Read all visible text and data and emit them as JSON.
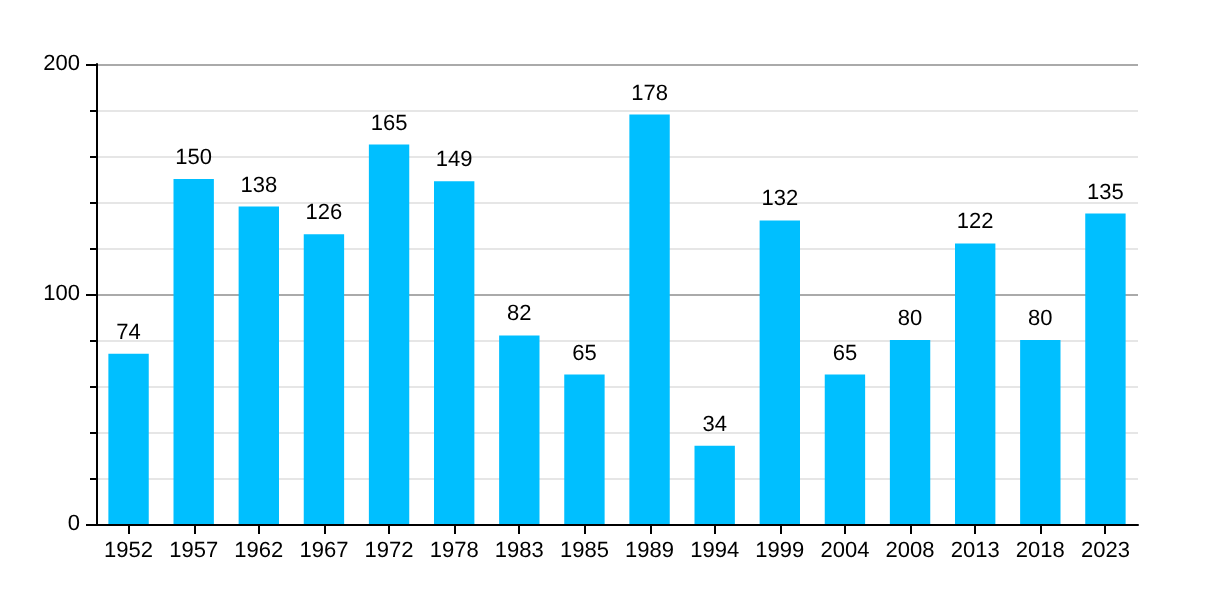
{
  "chart_data": {
    "type": "bar",
    "categories": [
      "1952",
      "1957",
      "1962",
      "1967",
      "1972",
      "1978",
      "1983",
      "1985",
      "1989",
      "1994",
      "1999",
      "2004",
      "2008",
      "2013",
      "2018",
      "2023"
    ],
    "values": [
      74,
      150,
      138,
      126,
      165,
      149,
      82,
      65,
      178,
      34,
      132,
      65,
      80,
      122,
      80,
      135
    ],
    "color": "#00bfff",
    "ylim": [
      0,
      200
    ],
    "yticks": [
      0,
      100,
      200
    ],
    "grid": "y",
    "data_labels": true
  }
}
